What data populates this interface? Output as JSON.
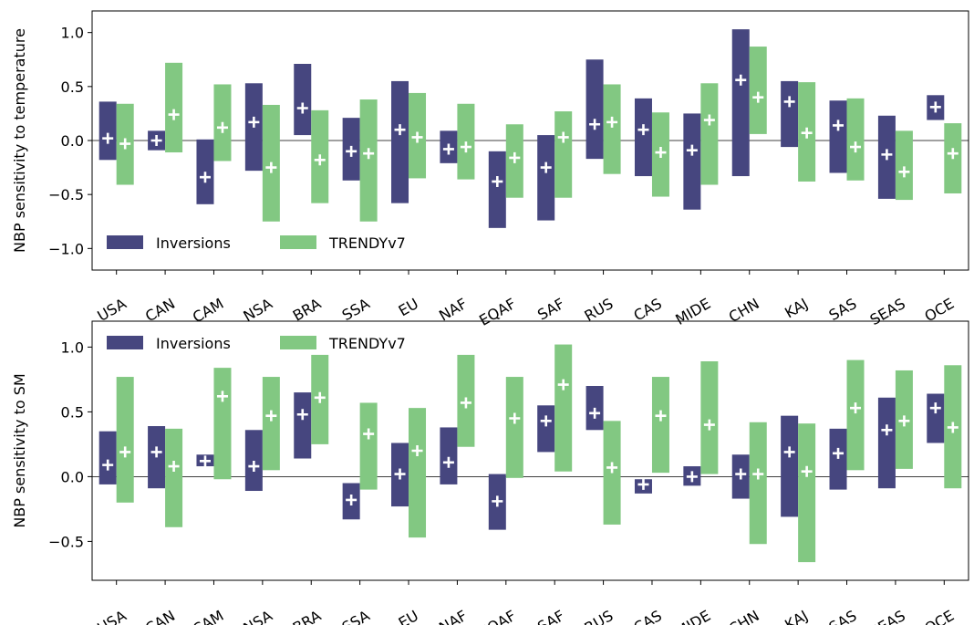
{
  "colors": {
    "inversions": "#46467f",
    "trendy": "#82c882",
    "cross": "#ffffff",
    "axis": "#000000"
  },
  "legend": {
    "inversions_label": "Inversions",
    "trendy_label": "TRENDYv7"
  },
  "chart_data": [
    {
      "type": "bar",
      "subtype": "floating-range-with-mean-marker",
      "title": "",
      "xlabel": "",
      "ylabel": "NBP sensitivity to temperature",
      "ylim": [
        -1.2,
        1.2
      ],
      "yticks": [
        -1.0,
        -0.5,
        0.0,
        0.5,
        1.0
      ],
      "ytick_labels": [
        "−1.0",
        "−0.5",
        "0.0",
        "0.5",
        "1.0"
      ],
      "grid": false,
      "zero_line": true,
      "legend_position": "lower-left",
      "categories": [
        "USA",
        "CAN",
        "CAM",
        "NSA",
        "BRA",
        "SSA",
        "EU",
        "NAF",
        "EQAF",
        "SAF",
        "RUS",
        "CAS",
        "MIDE",
        "CHN",
        "KAJ",
        "SAS",
        "SEAS",
        "OCE"
      ],
      "series": [
        {
          "name": "Inversions",
          "low": [
            -0.18,
            -0.09,
            -0.59,
            -0.28,
            0.05,
            -0.37,
            -0.58,
            -0.21,
            -0.81,
            -0.74,
            -0.17,
            -0.33,
            -0.64,
            -0.33,
            -0.06,
            -0.3,
            -0.54,
            0.19
          ],
          "high": [
            0.36,
            0.09,
            0.01,
            0.53,
            0.71,
            0.21,
            0.55,
            0.09,
            -0.1,
            0.05,
            0.75,
            0.39,
            0.25,
            1.03,
            0.55,
            0.37,
            0.23,
            0.42
          ],
          "mean": [
            0.02,
            0.0,
            -0.34,
            0.17,
            0.3,
            -0.1,
            0.1,
            -0.08,
            -0.38,
            -0.25,
            0.15,
            0.1,
            -0.09,
            0.56,
            0.36,
            0.14,
            -0.13,
            0.31
          ]
        },
        {
          "name": "TRENDYv7",
          "low": [
            -0.41,
            -0.11,
            -0.19,
            -0.75,
            -0.58,
            -0.75,
            -0.35,
            -0.36,
            -0.53,
            -0.53,
            -0.31,
            -0.52,
            -0.41,
            0.06,
            -0.38,
            -0.37,
            -0.55,
            -0.49
          ],
          "high": [
            0.34,
            0.72,
            0.52,
            0.33,
            0.28,
            0.38,
            0.44,
            0.34,
            0.15,
            0.27,
            0.52,
            0.26,
            0.53,
            0.87,
            0.54,
            0.39,
            0.09,
            0.16
          ],
          "mean": [
            -0.03,
            0.24,
            0.12,
            -0.25,
            -0.18,
            -0.12,
            0.03,
            -0.06,
            -0.16,
            0.03,
            0.17,
            -0.11,
            0.19,
            0.4,
            0.07,
            -0.06,
            -0.29,
            -0.12
          ]
        }
      ]
    },
    {
      "type": "bar",
      "subtype": "floating-range-with-mean-marker",
      "title": "",
      "xlabel": "",
      "ylabel": "NBP sensitivity to SM",
      "ylim": [
        -0.8,
        1.2
      ],
      "yticks": [
        -0.5,
        0.0,
        0.5,
        1.0
      ],
      "ytick_labels": [
        "−0.5",
        "0.0",
        "0.5",
        "1.0"
      ],
      "grid": false,
      "zero_line": true,
      "legend_position": "upper-left",
      "categories": [
        "USA",
        "CAN",
        "CAM",
        "NSA",
        "BRA",
        "SSA",
        "EU",
        "NAF",
        "EQAF",
        "SAF",
        "RUS",
        "CAS",
        "MIDE",
        "CHN",
        "KAJ",
        "SAS",
        "SEAS",
        "OCE"
      ],
      "series": [
        {
          "name": "Inversions",
          "low": [
            -0.06,
            -0.09,
            0.08,
            -0.11,
            0.14,
            -0.33,
            -0.23,
            -0.06,
            -0.41,
            0.19,
            0.36,
            -0.13,
            -0.07,
            -0.17,
            -0.31,
            -0.1,
            -0.09,
            0.26
          ],
          "high": [
            0.35,
            0.39,
            0.17,
            0.36,
            0.65,
            -0.05,
            0.26,
            0.38,
            0.02,
            0.55,
            0.7,
            -0.02,
            0.08,
            0.17,
            0.47,
            0.37,
            0.61,
            0.64
          ],
          "mean": [
            0.09,
            0.19,
            0.12,
            0.08,
            0.48,
            -0.18,
            0.02,
            0.11,
            -0.19,
            0.43,
            0.49,
            -0.06,
            0.0,
            0.02,
            0.19,
            0.18,
            0.36,
            0.53
          ]
        },
        {
          "name": "TRENDYv7",
          "low": [
            -0.2,
            -0.39,
            -0.02,
            0.05,
            0.25,
            -0.1,
            -0.47,
            0.23,
            -0.01,
            0.04,
            -0.37,
            0.03,
            0.02,
            -0.52,
            -0.66,
            0.05,
            0.06,
            -0.09
          ],
          "high": [
            0.77,
            0.37,
            0.84,
            0.77,
            0.94,
            0.57,
            0.53,
            0.94,
            0.77,
            1.02,
            0.43,
            0.77,
            0.89,
            0.42,
            0.41,
            0.9,
            0.82,
            0.86
          ],
          "mean": [
            0.19,
            0.08,
            0.62,
            0.47,
            0.61,
            0.33,
            0.2,
            0.57,
            0.45,
            0.71,
            0.07,
            0.47,
            0.4,
            0.02,
            0.04,
            0.53,
            0.43,
            0.38
          ]
        }
      ]
    }
  ]
}
